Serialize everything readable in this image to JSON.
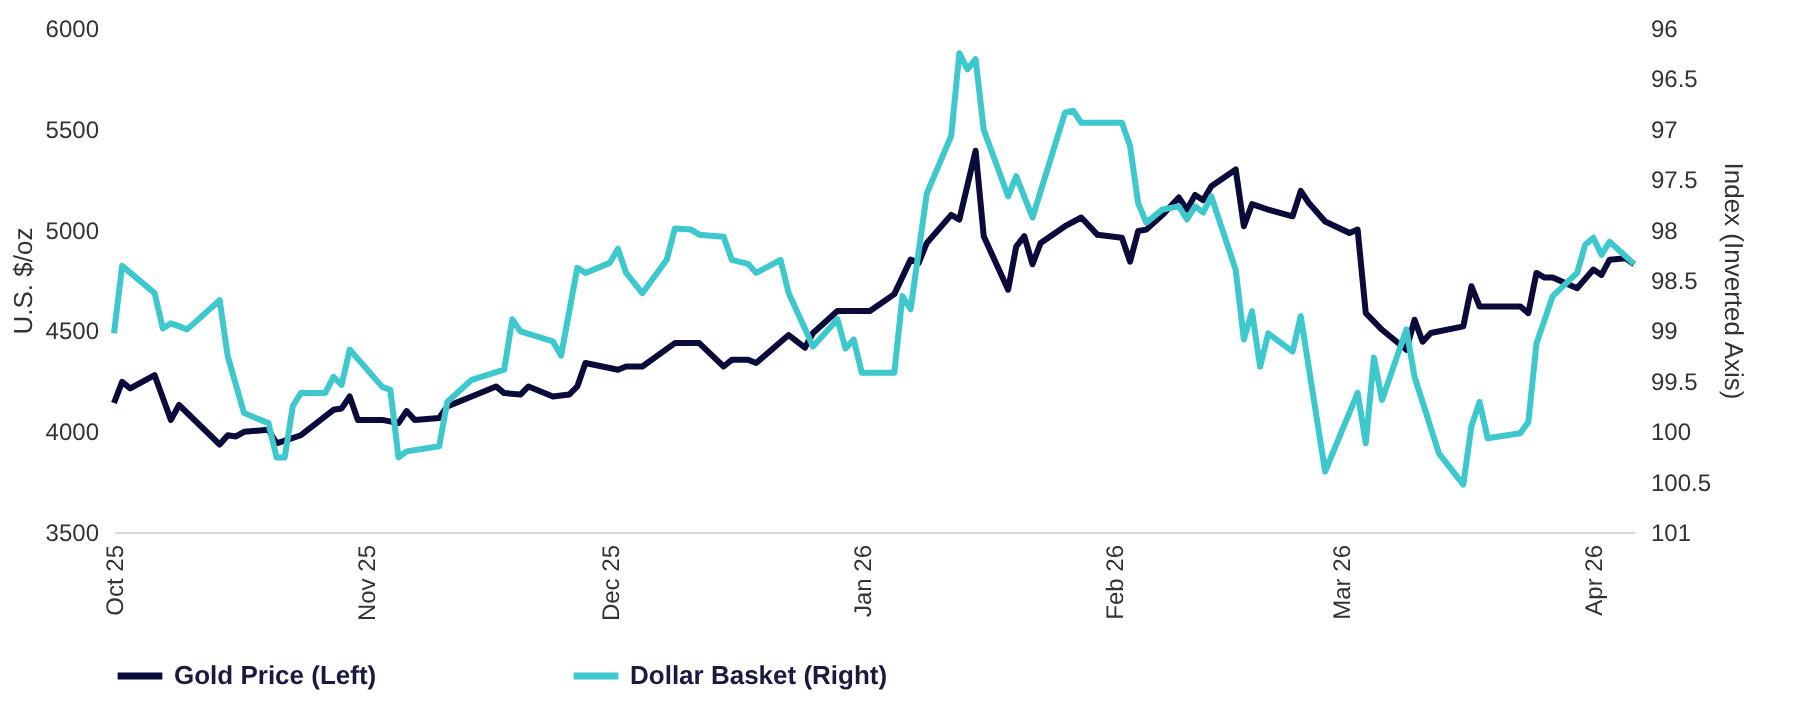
{
  "chart_data": {
    "type": "line",
    "ylabel": "U.S. $/oz",
    "y2label": "Index (Inverted Axis)",
    "xlim": [
      "2025-10-01",
      "2026-04-06"
    ],
    "xticks": [
      {
        "value": "2025-10-01",
        "label": "Oct 25"
      },
      {
        "value": "2025-11-01",
        "label": "Nov 25"
      },
      {
        "value": "2025-12-01",
        "label": "Dec 25"
      },
      {
        "value": "2026-01-01",
        "label": "Jan 26"
      },
      {
        "value": "2026-02-01",
        "label": "Feb 26"
      },
      {
        "value": "2026-03-01",
        "label": "Mar 26"
      },
      {
        "value": "2026-04-01",
        "label": "Apr 26"
      }
    ],
    "ylim": [
      3500,
      6000
    ],
    "yticks": [
      3500,
      4000,
      4500,
      5000,
      5500,
      6000
    ],
    "y2lim": [
      101,
      96
    ],
    "y2ticks": [
      96,
      96.5,
      97,
      97.5,
      98,
      98.5,
      99,
      99.5,
      100,
      100.5,
      101
    ],
    "grid": false,
    "legend": "bottom",
    "marker": "none",
    "line_style": "solid",
    "series": [
      {
        "name": "Gold Price (Left)",
        "color": "#0b0b3b",
        "axis": "y",
        "x": [
          "2025-10-01",
          "2025-10-02",
          "2025-10-03",
          "2025-10-06",
          "2025-10-08",
          "2025-10-09",
          "2025-10-14",
          "2025-10-15",
          "2025-10-16",
          "2025-10-17",
          "2025-10-20",
          "2025-10-21",
          "2025-10-24",
          "2025-10-28",
          "2025-10-29",
          "2025-10-30",
          "2025-10-31",
          "2025-11-03",
          "2025-11-05",
          "2025-11-06",
          "2025-11-07",
          "2025-11-10",
          "2025-11-11",
          "2025-11-14",
          "2025-11-17",
          "2025-11-18",
          "2025-11-20",
          "2025-11-21",
          "2025-11-24",
          "2025-11-26",
          "2025-11-27",
          "2025-11-28",
          "2025-12-02",
          "2025-12-03",
          "2025-12-05",
          "2025-12-09",
          "2025-12-12",
          "2025-12-15",
          "2025-12-16",
          "2025-12-18",
          "2025-12-19",
          "2025-12-23",
          "2025-12-25",
          "2025-12-26",
          "2025-12-29",
          "2026-01-02",
          "2026-01-05",
          "2026-01-07",
          "2026-01-08",
          "2026-01-09",
          "2026-01-12",
          "2026-01-13",
          "2026-01-15",
          "2026-01-16",
          "2026-01-19",
          "2026-01-20",
          "2026-01-21",
          "2026-01-22",
          "2026-01-23",
          "2026-01-26",
          "2026-01-28",
          "2026-01-30",
          "2026-02-02",
          "2026-02-03",
          "2026-02-04",
          "2026-02-05",
          "2026-02-07",
          "2026-02-09",
          "2026-02-10",
          "2026-02-11",
          "2026-02-12",
          "2026-02-13",
          "2026-02-16",
          "2026-02-17",
          "2026-02-18",
          "2026-02-20",
          "2026-02-23",
          "2026-02-24",
          "2026-02-25",
          "2026-02-27",
          "2026-03-02",
          "2026-03-03",
          "2026-03-04",
          "2026-03-06",
          "2026-03-09",
          "2026-03-10",
          "2026-03-11",
          "2026-03-12",
          "2026-03-16",
          "2026-03-17",
          "2026-03-18",
          "2026-03-23",
          "2026-03-24",
          "2026-03-25",
          "2026-03-26",
          "2026-03-27",
          "2026-03-30",
          "2026-04-01",
          "2026-04-02",
          "2026-04-03",
          "2026-04-05",
          "2026-04-06"
        ],
        "values": [
          4140,
          4245,
          4212,
          4278,
          4056,
          4130,
          3934,
          3980,
          3974,
          3997,
          4007,
          3940,
          3980,
          4106,
          4113,
          4172,
          4056,
          4056,
          4040,
          4100,
          4056,
          4066,
          4123,
          4172,
          4222,
          4189,
          4182,
          4222,
          4172,
          4182,
          4222,
          4338,
          4305,
          4321,
          4321,
          4437,
          4437,
          4321,
          4354,
          4354,
          4338,
          4477,
          4414,
          4487,
          4596,
          4596,
          4680,
          4851,
          4835,
          4934,
          5073,
          5050,
          5391,
          4967,
          4702,
          4917,
          4967,
          4828,
          4934,
          5017,
          5060,
          4974,
          4960,
          4841,
          4993,
          5000,
          5073,
          5159,
          5099,
          5172,
          5146,
          5215,
          5298,
          5017,
          5126,
          5099,
          5066,
          5192,
          5132,
          5040,
          4983,
          5000,
          4586,
          4503,
          4404,
          4553,
          4444,
          4487,
          4520,
          4719,
          4619,
          4619,
          4586,
          4785,
          4762,
          4762,
          4709,
          4802,
          4775,
          4851,
          4858,
          4828
        ]
      },
      {
        "name": "Dollar Basket (Right)",
        "color": "#3cc8cc",
        "axis": "y2",
        "x": [
          "2025-10-01",
          "2025-10-02",
          "2025-10-06",
          "2025-10-07",
          "2025-10-08",
          "2025-10-10",
          "2025-10-14",
          "2025-10-15",
          "2025-10-17",
          "2025-10-20",
          "2025-10-21",
          "2025-10-22",
          "2025-10-23",
          "2025-10-24",
          "2025-10-27",
          "2025-10-28",
          "2025-10-29",
          "2025-10-30",
          "2025-11-03",
          "2025-11-04",
          "2025-11-05",
          "2025-11-06",
          "2025-11-10",
          "2025-11-11",
          "2025-11-14",
          "2025-11-18",
          "2025-11-19",
          "2025-11-20",
          "2025-11-24",
          "2025-11-25",
          "2025-11-27",
          "2025-11-28",
          "2025-12-01",
          "2025-12-02",
          "2025-12-03",
          "2025-12-05",
          "2025-12-08",
          "2025-12-09",
          "2025-12-11",
          "2025-12-12",
          "2025-12-15",
          "2025-12-16",
          "2025-12-18",
          "2025-12-19",
          "2025-12-22",
          "2025-12-23",
          "2025-12-26",
          "2025-12-29",
          "2025-12-30",
          "2025-12-31",
          "2026-01-01",
          "2026-01-05",
          "2026-01-06",
          "2026-01-07",
          "2026-01-09",
          "2026-01-12",
          "2026-01-13",
          "2026-01-14",
          "2026-01-15",
          "2026-01-16",
          "2026-01-19",
          "2026-01-20",
          "2026-01-22",
          "2026-01-26",
          "2026-01-27",
          "2026-01-28",
          "2026-02-02",
          "2026-02-03",
          "2026-02-04",
          "2026-02-05",
          "2026-02-07",
          "2026-02-09",
          "2026-02-10",
          "2026-02-11",
          "2026-02-12",
          "2026-02-13",
          "2026-02-16",
          "2026-02-17",
          "2026-02-18",
          "2026-02-19",
          "2026-02-20",
          "2026-02-23",
          "2026-02-24",
          "2026-02-27",
          "2026-03-03",
          "2026-03-04",
          "2026-03-05",
          "2026-03-06",
          "2026-03-09",
          "2026-03-10",
          "2026-03-13",
          "2026-03-16",
          "2026-03-17",
          "2026-03-18",
          "2026-03-19",
          "2026-03-23",
          "2026-03-24",
          "2026-03-25",
          "2026-03-27",
          "2026-03-30",
          "2026-03-31",
          "2026-04-01",
          "2026-04-02",
          "2026-04-03",
          "2026-04-06"
        ],
        "values": [
          99.03,
          98.36,
          98.63,
          98.98,
          98.93,
          98.99,
          98.7,
          99.26,
          99.82,
          99.92,
          100.26,
          100.26,
          99.75,
          99.62,
          99.62,
          99.46,
          99.54,
          99.19,
          99.56,
          99.59,
          100.26,
          100.2,
          100.15,
          99.71,
          99.49,
          99.39,
          98.89,
          99.01,
          99.11,
          99.25,
          98.38,
          98.43,
          98.33,
          98.19,
          98.43,
          98.63,
          98.3,
          97.99,
          98.0,
          98.05,
          98.07,
          98.3,
          98.34,
          98.43,
          98.3,
          98.63,
          99.16,
          98.89,
          99.18,
          99.09,
          99.42,
          99.42,
          98.66,
          98.79,
          97.64,
          97.07,
          96.25,
          96.41,
          96.31,
          97.01,
          97.67,
          97.47,
          97.88,
          96.84,
          96.82,
          96.94,
          96.94,
          97.17,
          97.74,
          97.93,
          97.8,
          97.77,
          97.9,
          97.77,
          97.83,
          97.67,
          98.4,
          99.09,
          98.81,
          99.36,
          99.03,
          99.21,
          98.86,
          100.4,
          99.62,
          100.12,
          99.27,
          99.69,
          98.99,
          99.46,
          100.22,
          100.53,
          99.95,
          99.71,
          100.07,
          100.02,
          99.91,
          99.13,
          98.66,
          98.43,
          98.15,
          98.08,
          98.25,
          98.12,
          98.34
        ]
      }
    ]
  }
}
